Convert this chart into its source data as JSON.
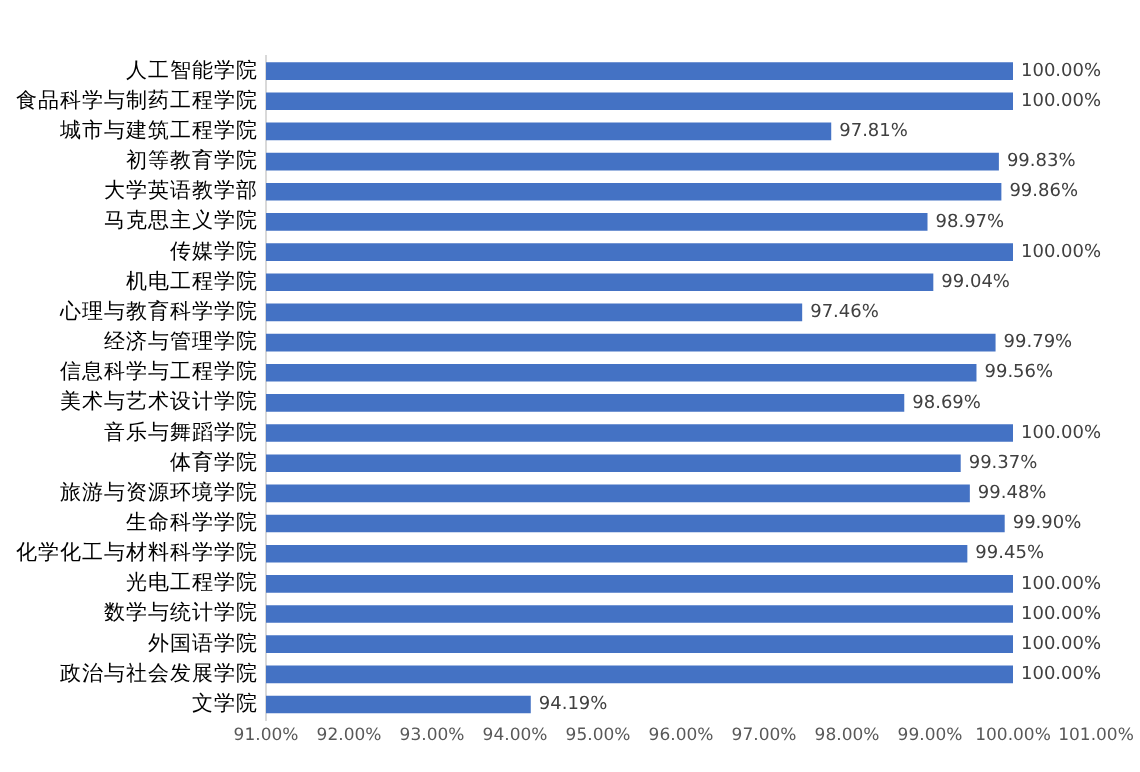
{
  "chart_data": {
    "type": "bar",
    "orientation": "horizontal",
    "categories": [
      "人工智能学院",
      "食品科学与制药工程学院",
      "城市与建筑工程学院",
      "初等教育学院",
      "大学英语教学部",
      "马克思主义学院",
      "传媒学院",
      "机电工程学院",
      "心理与教育科学学院",
      "经济与管理学院",
      "信息科学与工程学院",
      "美术与艺术设计学院",
      "音乐与舞蹈学院",
      "体育学院",
      "旅游与资源环境学院",
      "生命科学学院",
      "化学化工与材料科学学院",
      "光电工程学院",
      "数学与统计学院",
      "外国语学院",
      "政治与社会发展学院",
      "文学院"
    ],
    "values": [
      100,
      100,
      97.81,
      99.83,
      99.86,
      98.97,
      100,
      99.04,
      97.46,
      99.79,
      99.56,
      98.69,
      100,
      99.37,
      99.48,
      99.9,
      99.45,
      100,
      100,
      100,
      100,
      94.19
    ],
    "value_labels": [
      "100.00%",
      "100.00%",
      "97.81%",
      "99.83%",
      "99.86%",
      "98.97%",
      "100.00%",
      "99.04%",
      "97.46%",
      "99.79%",
      "99.56%",
      "98.69%",
      "100.00%",
      "99.37%",
      "99.48%",
      "99.90%",
      "99.45%",
      "100.00%",
      "100.00%",
      "100.00%",
      "100.00%",
      "94.19%"
    ],
    "color": "#4472c4",
    "xlim": [
      91,
      101
    ],
    "xticks": [
      {
        "value": 91,
        "label": "91.00%"
      },
      {
        "value": 92,
        "label": "92.00%"
      },
      {
        "value": 93,
        "label": "93.00%"
      },
      {
        "value": 94,
        "label": "94.00%"
      },
      {
        "value": 95,
        "label": "95.00%"
      },
      {
        "value": 96,
        "label": "96.00%"
      },
      {
        "value": 97,
        "label": "97.00%"
      },
      {
        "value": 98,
        "label": "98.00%"
      },
      {
        "value": 99,
        "label": "99.00%"
      },
      {
        "value": 100,
        "label": "100.00%"
      },
      {
        "value": 101,
        "label": "101.00%"
      }
    ],
    "grid": false,
    "legend": false
  }
}
